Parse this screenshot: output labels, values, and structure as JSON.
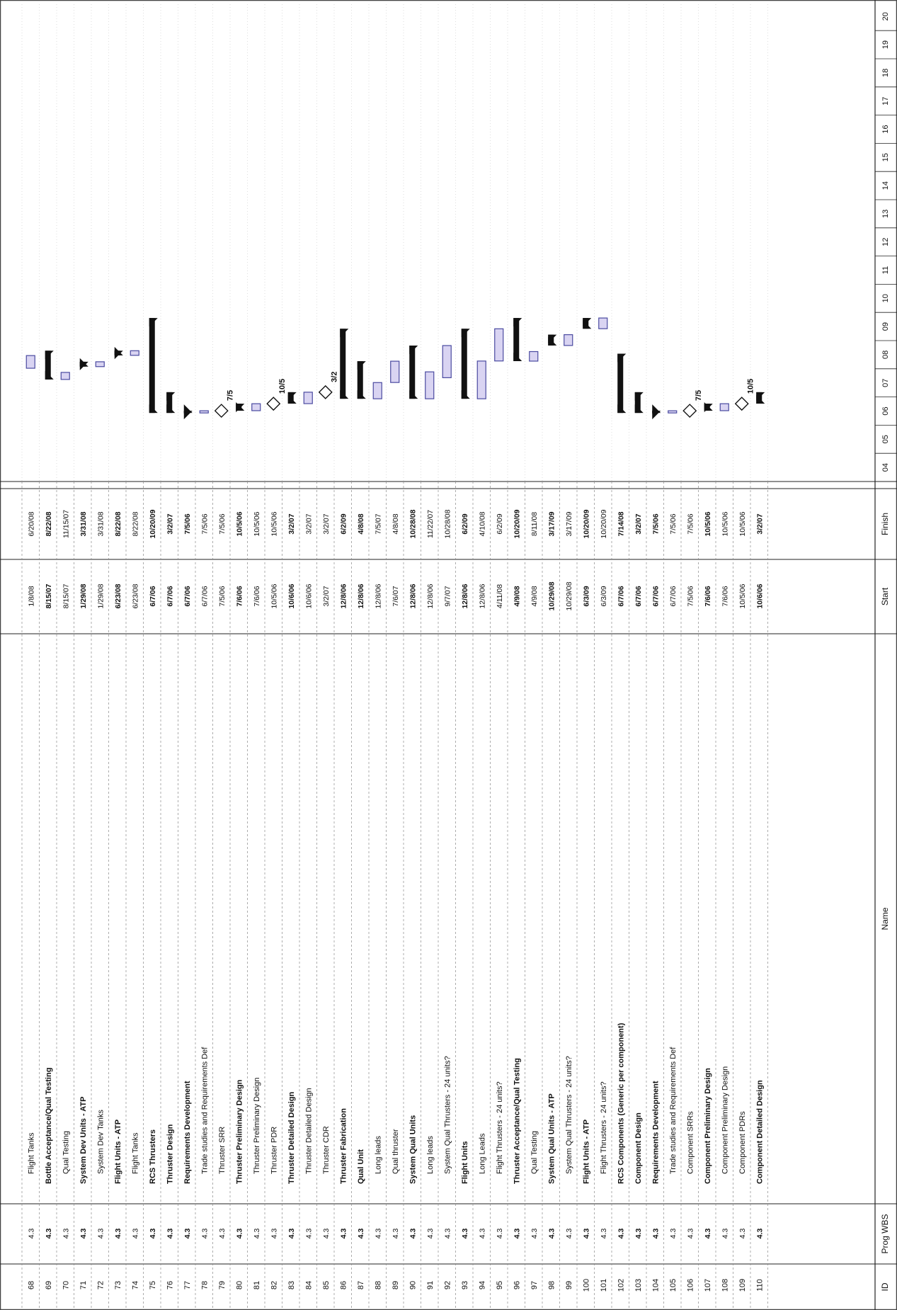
{
  "chart_data": {
    "type": "gantt",
    "orientation": "rotated-90",
    "columns": {
      "id": "ID",
      "wbs": "Prog WBS",
      "name": "Name",
      "start": "Start",
      "finish": "Finish"
    },
    "timescale": [
      "04",
      "05",
      "06",
      "07",
      "08",
      "09",
      "10",
      "11",
      "12",
      "13",
      "14",
      "15",
      "16",
      "17",
      "18",
      "19",
      "20"
    ],
    "rows": [
      {
        "id": "68",
        "wbs": "4.3",
        "name": "Flight Tanks",
        "start": "1/8/08",
        "finish": "6/20/08",
        "bold": false,
        "kind": "task"
      },
      {
        "id": "69",
        "wbs": "4.3",
        "name": "Bottle Acceptance/Qual Testing",
        "start": "8/15/07",
        "finish": "8/22/08",
        "bold": true,
        "kind": "summary"
      },
      {
        "id": "70",
        "wbs": "4.3",
        "name": "Qual Testing",
        "start": "8/15/07",
        "finish": "11/15/07",
        "bold": false,
        "kind": "task"
      },
      {
        "id": "71",
        "wbs": "4.3",
        "name": "System Dev Units - ATP",
        "start": "1/29/08",
        "finish": "3/31/08",
        "bold": true,
        "kind": "summary"
      },
      {
        "id": "72",
        "wbs": "4.3",
        "name": "System Dev Tanks",
        "start": "1/29/08",
        "finish": "3/31/08",
        "bold": false,
        "kind": "task"
      },
      {
        "id": "73",
        "wbs": "4.3",
        "name": "Flight Units - ATP",
        "start": "6/23/08",
        "finish": "8/22/08",
        "bold": true,
        "kind": "summary"
      },
      {
        "id": "74",
        "wbs": "4.3",
        "name": "Flight Tanks",
        "start": "6/23/08",
        "finish": "8/22/08",
        "bold": false,
        "kind": "task"
      },
      {
        "id": "75",
        "wbs": "4.3",
        "name": "RCS Thrusters",
        "start": "6/7/06",
        "finish": "10/20/09",
        "bold": true,
        "kind": "summary"
      },
      {
        "id": "76",
        "wbs": "4.3",
        "name": "Thruster Design",
        "start": "6/7/06",
        "finish": "3/2/07",
        "bold": true,
        "kind": "summary"
      },
      {
        "id": "77",
        "wbs": "4.3",
        "name": "Requirements Development",
        "start": "6/7/06",
        "finish": "7/5/06",
        "bold": true,
        "kind": "summary"
      },
      {
        "id": "78",
        "wbs": "4.3",
        "name": "Trade studies and Requirements Def",
        "start": "6/7/06",
        "finish": "7/5/06",
        "bold": false,
        "kind": "task"
      },
      {
        "id": "79",
        "wbs": "4.3",
        "name": "Thruster SRR",
        "start": "7/5/06",
        "finish": "7/5/06",
        "bold": false,
        "kind": "milestone",
        "label": "7/5"
      },
      {
        "id": "80",
        "wbs": "4.3",
        "name": "Thruster Preliminary Design",
        "start": "7/6/06",
        "finish": "10/5/06",
        "bold": true,
        "kind": "summary"
      },
      {
        "id": "81",
        "wbs": "4.3",
        "name": "Thruster Preliminary Design",
        "start": "7/6/06",
        "finish": "10/5/06",
        "bold": false,
        "kind": "task"
      },
      {
        "id": "82",
        "wbs": "4.3",
        "name": "Thruster PDR",
        "start": "10/5/06",
        "finish": "10/5/06",
        "bold": false,
        "kind": "milestone",
        "label": "10/5"
      },
      {
        "id": "83",
        "wbs": "4.3",
        "name": "Thruster Detailed Design",
        "start": "10/6/06",
        "finish": "3/2/07",
        "bold": true,
        "kind": "summary"
      },
      {
        "id": "84",
        "wbs": "4.3",
        "name": "Thruster Detailed Design",
        "start": "10/6/06",
        "finish": "3/2/07",
        "bold": false,
        "kind": "task"
      },
      {
        "id": "85",
        "wbs": "4.3",
        "name": "Thruster CDR",
        "start": "3/2/07",
        "finish": "3/2/07",
        "bold": false,
        "kind": "milestone",
        "label": "3/2"
      },
      {
        "id": "86",
        "wbs": "4.3",
        "name": "Thruster Fabrication",
        "start": "12/8/06",
        "finish": "6/2/09",
        "bold": true,
        "kind": "summary"
      },
      {
        "id": "87",
        "wbs": "4.3",
        "name": "Qual Unit",
        "start": "12/8/06",
        "finish": "4/8/08",
        "bold": true,
        "kind": "summary"
      },
      {
        "id": "88",
        "wbs": "4.3",
        "name": "Long leads",
        "start": "12/8/06",
        "finish": "7/5/07",
        "bold": false,
        "kind": "task"
      },
      {
        "id": "89",
        "wbs": "4.3",
        "name": "Qual thruster",
        "start": "7/6/07",
        "finish": "4/8/08",
        "bold": false,
        "kind": "task"
      },
      {
        "id": "90",
        "wbs": "4.3",
        "name": "System Qual Units",
        "start": "12/8/06",
        "finish": "10/28/08",
        "bold": true,
        "kind": "summary"
      },
      {
        "id": "91",
        "wbs": "4.3",
        "name": "Long leads",
        "start": "12/8/06",
        "finish": "11/22/07",
        "bold": false,
        "kind": "task"
      },
      {
        "id": "92",
        "wbs": "4.3",
        "name": "System Qual Thrusters - 24 units?",
        "start": "9/7/07",
        "finish": "10/28/08",
        "bold": false,
        "kind": "task"
      },
      {
        "id": "93",
        "wbs": "4.3",
        "name": "Flight Units",
        "start": "12/8/06",
        "finish": "6/2/09",
        "bold": true,
        "kind": "summary"
      },
      {
        "id": "94",
        "wbs": "4.3",
        "name": "Long Leads",
        "start": "12/8/06",
        "finish": "4/10/08",
        "bold": false,
        "kind": "task"
      },
      {
        "id": "95",
        "wbs": "4.3",
        "name": "Flight Thrusters - 24 units?",
        "start": "4/11/08",
        "finish": "6/2/09",
        "bold": false,
        "kind": "task"
      },
      {
        "id": "96",
        "wbs": "4.3",
        "name": "Thruster Acceptance/Qual Testing",
        "start": "4/9/08",
        "finish": "10/20/09",
        "bold": true,
        "kind": "summary"
      },
      {
        "id": "97",
        "wbs": "4.3",
        "name": "Qual Testing",
        "start": "4/9/08",
        "finish": "8/11/08",
        "bold": false,
        "kind": "task"
      },
      {
        "id": "98",
        "wbs": "4.3",
        "name": "System Qual Units - ATP",
        "start": "10/29/08",
        "finish": "3/17/09",
        "bold": true,
        "kind": "summary"
      },
      {
        "id": "99",
        "wbs": "4.3",
        "name": "System Qual Thrusters - 24 units?",
        "start": "10/29/08",
        "finish": "3/17/09",
        "bold": false,
        "kind": "task"
      },
      {
        "id": "100",
        "wbs": "4.3",
        "name": "Flight Units - ATP",
        "start": "6/3/09",
        "finish": "10/20/09",
        "bold": true,
        "kind": "summary"
      },
      {
        "id": "101",
        "wbs": "4.3",
        "name": "Flight Thrusters - 24 units?",
        "start": "6/3/09",
        "finish": "10/20/09",
        "bold": false,
        "kind": "task"
      },
      {
        "id": "102",
        "wbs": "4.3",
        "name": "RCS Components (Generic per component)",
        "start": "6/7/06",
        "finish": "7/14/08",
        "bold": true,
        "kind": "summary"
      },
      {
        "id": "103",
        "wbs": "4.3",
        "name": "Component Design",
        "start": "6/7/06",
        "finish": "3/2/07",
        "bold": true,
        "kind": "summary"
      },
      {
        "id": "104",
        "wbs": "4.3",
        "name": "Requirements Development",
        "start": "6/7/06",
        "finish": "7/5/06",
        "bold": true,
        "kind": "summary"
      },
      {
        "id": "105",
        "wbs": "4.3",
        "name": "Trade studies and Requirements Def",
        "start": "6/7/06",
        "finish": "7/5/06",
        "bold": false,
        "kind": "task"
      },
      {
        "id": "106",
        "wbs": "4.3",
        "name": "Component SRRs",
        "start": "7/5/06",
        "finish": "7/5/06",
        "bold": false,
        "kind": "milestone",
        "label": "7/5"
      },
      {
        "id": "107",
        "wbs": "4.3",
        "name": "Component Preliminary Design",
        "start": "7/6/06",
        "finish": "10/5/06",
        "bold": true,
        "kind": "summary"
      },
      {
        "id": "108",
        "wbs": "4.3",
        "name": "Component Preliminary Design",
        "start": "7/6/06",
        "finish": "10/5/06",
        "bold": false,
        "kind": "task"
      },
      {
        "id": "109",
        "wbs": "4.3",
        "name": "Component PDRs",
        "start": "10/5/06",
        "finish": "10/5/06",
        "bold": false,
        "kind": "milestone",
        "label": "10/5"
      },
      {
        "id": "110",
        "wbs": "4.3",
        "name": "Component Detailed Design",
        "start": "10/6/06",
        "finish": "3/2/07",
        "bold": true,
        "kind": "summary"
      }
    ],
    "colors": {
      "task_fill": "#d9d4f2",
      "task_stroke": "#4a4aa0",
      "summary": "#111111",
      "grid": "#bdbdbd",
      "line": "#222222"
    }
  }
}
